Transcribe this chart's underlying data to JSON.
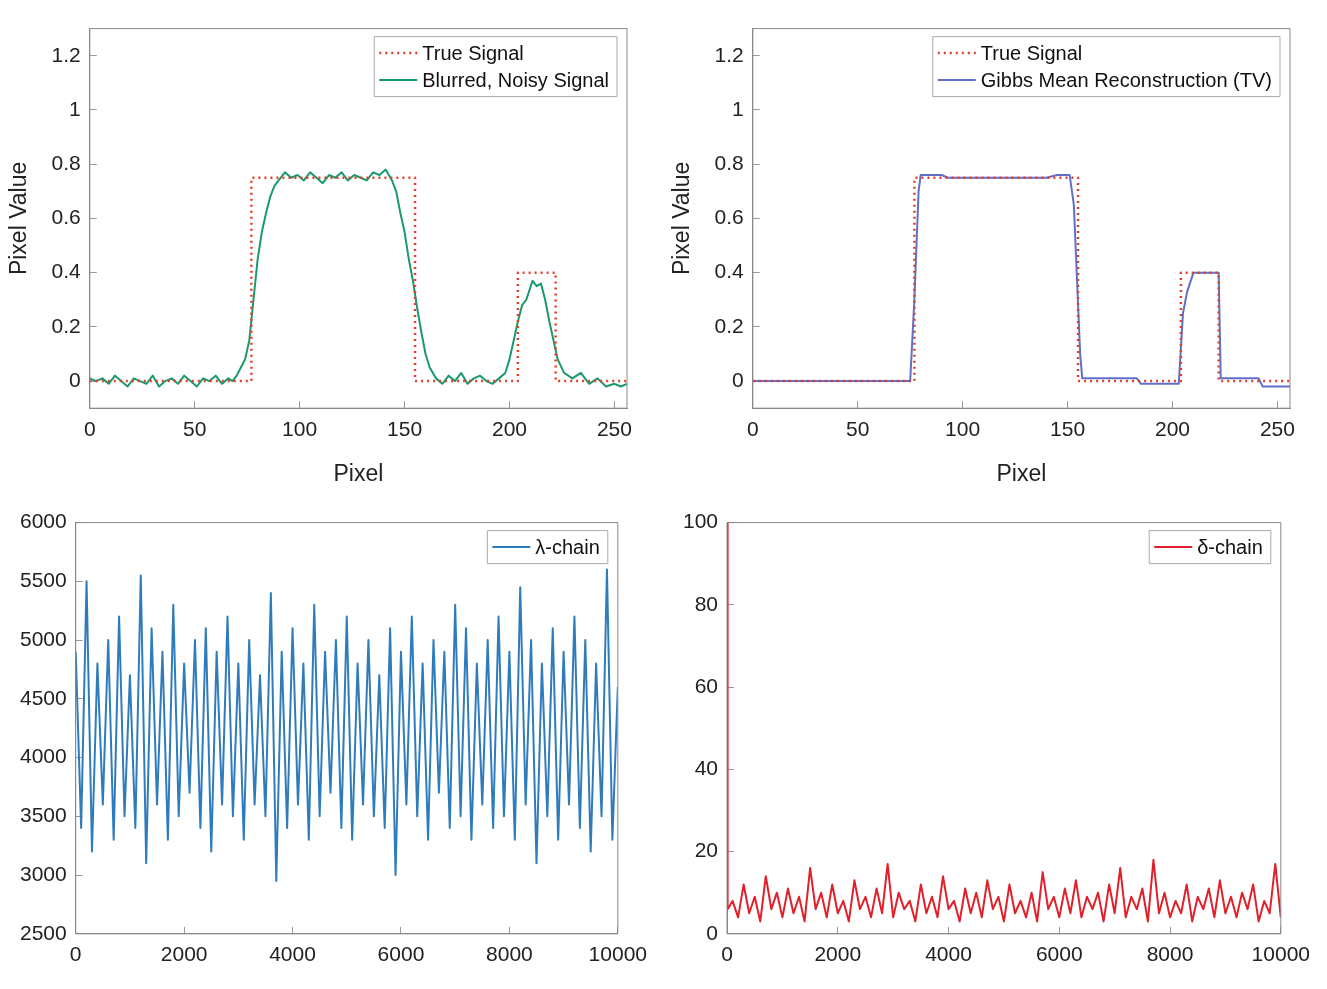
{
  "chart_data": [
    {
      "type": "line",
      "xlabel": "Pixel",
      "ylabel": "Pixel Value",
      "xlim": [
        0,
        256
      ],
      "ylim": [
        -0.1,
        1.3
      ],
      "xticks": [
        0,
        50,
        100,
        150,
        200,
        250
      ],
      "yticks": [
        0,
        0.2,
        0.4,
        0.6,
        0.8,
        1,
        1.2
      ],
      "legend": "top right",
      "series": [
        {
          "name": "True Signal",
          "color": "#e0402a",
          "line_style": "dotted",
          "x": [
            0,
            77,
            77,
            155,
            155,
            204,
            204,
            222,
            222,
            256
          ],
          "values": [
            0,
            0,
            0.75,
            0.75,
            0,
            0,
            0.4,
            0.4,
            0,
            0
          ]
        },
        {
          "name": "Blurred, Noisy Signal",
          "color": "#1a9a6c",
          "line_style": "solid",
          "x": [
            0,
            3,
            6,
            9,
            12,
            15,
            18,
            21,
            24,
            27,
            30,
            33,
            36,
            39,
            42,
            45,
            48,
            51,
            54,
            57,
            60,
            63,
            66,
            68,
            70,
            72,
            74,
            76,
            78,
            80,
            82,
            84,
            86,
            88,
            90,
            93,
            96,
            99,
            102,
            105,
            108,
            111,
            114,
            117,
            120,
            123,
            126,
            129,
            132,
            135,
            138,
            141,
            144,
            146,
            148,
            150,
            152,
            154,
            156,
            158,
            160,
            162,
            165,
            168,
            171,
            174,
            177,
            180,
            183,
            186,
            189,
            192,
            195,
            198,
            200,
            202,
            204,
            206,
            208,
            211,
            213,
            215,
            217,
            219,
            221,
            223,
            226,
            230,
            234,
            238,
            242,
            246,
            250,
            253,
            256
          ],
          "values": [
            0.01,
            0,
            0.01,
            -0.01,
            0.02,
            0,
            -0.02,
            0.01,
            0,
            -0.01,
            0.02,
            -0.02,
            0,
            0.01,
            -0.01,
            0.02,
            0,
            -0.02,
            0.01,
            0,
            0.02,
            -0.01,
            0.01,
            0,
            0.02,
            0.05,
            0.08,
            0.15,
            0.3,
            0.45,
            0.55,
            0.62,
            0.68,
            0.72,
            0.74,
            0.77,
            0.75,
            0.76,
            0.74,
            0.77,
            0.75,
            0.73,
            0.76,
            0.75,
            0.77,
            0.74,
            0.76,
            0.75,
            0.74,
            0.77,
            0.76,
            0.78,
            0.74,
            0.7,
            0.62,
            0.55,
            0.45,
            0.37,
            0.27,
            0.18,
            0.1,
            0.05,
            0.01,
            -0.01,
            0.02,
            0,
            0.03,
            -0.01,
            0.01,
            0.02,
            0,
            -0.01,
            0.01,
            0.03,
            0.08,
            0.15,
            0.22,
            0.28,
            0.3,
            0.37,
            0.35,
            0.36,
            0.3,
            0.22,
            0.15,
            0.08,
            0.03,
            0.01,
            0.03,
            -0.01,
            0.01,
            -0.02,
            -0.01,
            -0.02,
            -0.01
          ]
        }
      ]
    },
    {
      "type": "line",
      "xlabel": "Pixel",
      "ylabel": "Pixel Value",
      "xlim": [
        0,
        256
      ],
      "ylim": [
        -0.1,
        1.3
      ],
      "xticks": [
        0,
        50,
        100,
        150,
        200,
        250
      ],
      "yticks": [
        0,
        0.2,
        0.4,
        0.6,
        0.8,
        1,
        1.2
      ],
      "legend": "top right",
      "series": [
        {
          "name": "True Signal",
          "color": "#e0402a",
          "line_style": "dotted",
          "x": [
            0,
            77,
            77,
            155,
            155,
            204,
            204,
            222,
            222,
            256
          ],
          "values": [
            0,
            0,
            0.75,
            0.75,
            0,
            0,
            0.4,
            0.4,
            0,
            0
          ]
        },
        {
          "name": "Gibbs Mean Reconstruction (TV)",
          "color": "#6070c8",
          "line_style": "solid",
          "x": [
            0,
            75,
            77,
            79,
            80,
            90,
            93,
            140,
            145,
            151,
            153,
            156,
            157,
            183,
            185,
            203,
            205,
            207,
            210,
            222,
            223,
            241,
            243,
            256
          ],
          "values": [
            0,
            0,
            0.3,
            0.7,
            0.76,
            0.76,
            0.75,
            0.75,
            0.76,
            0.76,
            0.65,
            0.1,
            0.01,
            0.01,
            -0.01,
            -0.01,
            0.25,
            0.33,
            0.4,
            0.4,
            0.01,
            0.01,
            -0.02,
            -0.02
          ]
        }
      ]
    },
    {
      "type": "line",
      "xlim": [
        0,
        10000
      ],
      "ylim": [
        2500,
        6000
      ],
      "xticks": [
        0,
        2000,
        4000,
        6000,
        8000,
        10000
      ],
      "yticks": [
        2500,
        3000,
        3500,
        4000,
        4500,
        5000,
        5500,
        6000
      ],
      "legend": "top right",
      "series": [
        {
          "name": "λ-chain",
          "color": "#2f7cbc",
          "line_style": "solid",
          "x": [
            0,
            100,
            200,
            300,
            400,
            500,
            600,
            700,
            800,
            900,
            1000,
            1100,
            1200,
            1300,
            1400,
            1500,
            1600,
            1700,
            1800,
            1900,
            2000,
            2100,
            2200,
            2300,
            2400,
            2500,
            2600,
            2700,
            2800,
            2900,
            3000,
            3100,
            3200,
            3300,
            3400,
            3500,
            3600,
            3700,
            3800,
            3900,
            4000,
            4100,
            4200,
            4300,
            4400,
            4500,
            4600,
            4700,
            4800,
            4900,
            5000,
            5100,
            5200,
            5300,
            5400,
            5500,
            5600,
            5700,
            5800,
            5900,
            6000,
            6100,
            6200,
            6300,
            6400,
            6500,
            6600,
            6700,
            6800,
            6900,
            7000,
            7100,
            7200,
            7300,
            7400,
            7500,
            7600,
            7700,
            7800,
            7900,
            8000,
            8100,
            8200,
            8300,
            8400,
            8500,
            8600,
            8700,
            8800,
            8900,
            9000,
            9100,
            9200,
            9300,
            9400,
            9500,
            9600,
            9700,
            9800,
            9900,
            10000
          ],
          "values": [
            4900,
            3400,
            5500,
            3200,
            4800,
            3600,
            5000,
            3300,
            5200,
            3500,
            4700,
            3400,
            5550,
            3100,
            5100,
            3600,
            4900,
            3300,
            5300,
            3500,
            4800,
            3700,
            5000,
            3400,
            5100,
            3200,
            4900,
            3600,
            5200,
            3500,
            4800,
            3300,
            5000,
            3600,
            4700,
            3500,
            5400,
            2950,
            4900,
            3400,
            5100,
            3600,
            4800,
            3300,
            5300,
            3500,
            4900,
            3700,
            5000,
            3400,
            5200,
            3300,
            4800,
            3600,
            5000,
            3500,
            4700,
            3400,
            5100,
            3000,
            4900,
            3600,
            5200,
            3500,
            4800,
            3300,
            5000,
            3700,
            4900,
            3400,
            5300,
            3500,
            5100,
            3300,
            4800,
            3600,
            5000,
            3400,
            5200,
            3500,
            4900,
            3300,
            5450,
            3600,
            5000,
            3100,
            4800,
            3500,
            5100,
            3300,
            4900,
            3600,
            5200,
            3400,
            5000,
            3200,
            4800,
            3500,
            5600,
            3300,
            4600
          ]
        }
      ]
    },
    {
      "type": "line",
      "xlim": [
        0,
        10000
      ],
      "ylim": [
        0,
        100
      ],
      "xticks": [
        0,
        2000,
        4000,
        6000,
        8000,
        10000
      ],
      "yticks": [
        0,
        20,
        40,
        60,
        80,
        100
      ],
      "legend": "top right",
      "series": [
        {
          "name": "δ-chain",
          "color": "#e0202a",
          "line_style": "solid",
          "x": [
            0,
            10,
            100,
            200,
            300,
            400,
            500,
            600,
            700,
            800,
            900,
            1000,
            1100,
            1200,
            1300,
            1400,
            1500,
            1600,
            1700,
            1800,
            1900,
            2000,
            2100,
            2200,
            2300,
            2400,
            2500,
            2600,
            2700,
            2800,
            2900,
            3000,
            3100,
            3200,
            3300,
            3400,
            3500,
            3600,
            3700,
            3800,
            3900,
            4000,
            4100,
            4200,
            4300,
            4400,
            4500,
            4600,
            4700,
            4800,
            4900,
            5000,
            5100,
            5200,
            5300,
            5400,
            5500,
            5600,
            5700,
            5800,
            5900,
            6000,
            6100,
            6200,
            6300,
            6400,
            6500,
            6600,
            6700,
            6800,
            6900,
            7000,
            7100,
            7200,
            7300,
            7400,
            7500,
            7600,
            7700,
            7800,
            7900,
            8000,
            8100,
            8200,
            8300,
            8400,
            8500,
            8600,
            8700,
            8800,
            8900,
            9000,
            9100,
            9200,
            9300,
            9400,
            9500,
            9600,
            9700,
            9800,
            9900,
            10000
          ],
          "values": [
            100,
            6,
            8,
            4,
            12,
            5,
            9,
            3,
            14,
            6,
            10,
            4,
            11,
            5,
            9,
            3,
            16,
            6,
            10,
            4,
            12,
            5,
            8,
            3,
            13,
            6,
            9,
            4,
            11,
            5,
            17,
            4,
            10,
            6,
            8,
            3,
            12,
            5,
            9,
            4,
            14,
            6,
            8,
            3,
            11,
            5,
            10,
            4,
            13,
            6,
            9,
            3,
            12,
            5,
            8,
            4,
            10,
            3,
            15,
            6,
            9,
            4,
            11,
            5,
            13,
            4,
            9,
            6,
            10,
            3,
            12,
            5,
            16,
            4,
            9,
            6,
            11,
            3,
            18,
            5,
            10,
            4,
            8,
            5,
            12,
            3,
            9,
            6,
            11,
            4,
            13,
            5,
            9,
            4,
            10,
            6,
            12,
            3,
            8,
            5,
            17,
            4
          ]
        }
      ]
    }
  ]
}
